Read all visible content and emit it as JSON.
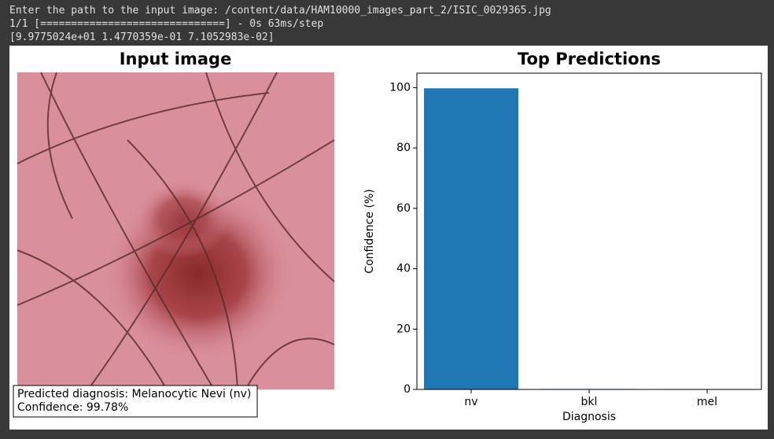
{
  "console": {
    "lines": [
      "Enter the path to the input image: /content/data/HAM10000_images_part_2/ISIC_0029365.jpg",
      "1/1 [==============================] - 0s 63ms/step",
      "[9.9775024e+01 1.4770359e-01 7.1052983e-02]"
    ]
  },
  "image_panel": {
    "title": "Input image",
    "annotation": [
      "Predicted diagnosis: Melanocytic Nevi (nv)",
      "Confidence: 99.78%"
    ]
  },
  "chart_data": {
    "type": "bar",
    "title": "Top Predictions",
    "xlabel": "Diagnosis",
    "ylabel": "Confidence (%)",
    "label_color": "#0000cc",
    "categories": [
      "nv",
      "bkl",
      "mel"
    ],
    "values": [
      99.78,
      0.15,
      0.07
    ],
    "color": "#1f77b4",
    "ylim": [
      0,
      104.8
    ],
    "yticks": [
      0,
      20,
      40,
      60,
      80,
      100
    ],
    "grid": false
  }
}
